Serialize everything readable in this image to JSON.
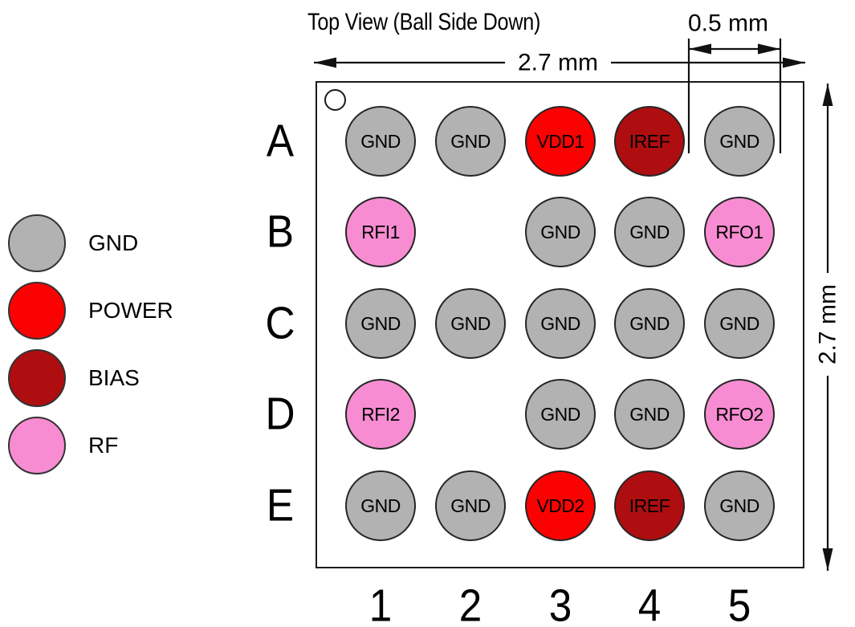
{
  "title": "Top View (Ball Side Down)",
  "dimensions": {
    "width_label": "2.7 mm",
    "height_label": "2.7 mm",
    "pitch_label": "0.5 mm"
  },
  "legend": [
    {
      "type": "GND",
      "label": "GND",
      "color": "#B2B2B2"
    },
    {
      "type": "POWER",
      "label": "POWER",
      "color": "#FA0202"
    },
    {
      "type": "BIAS",
      "label": "BIAS",
      "color": "#AE0E10"
    },
    {
      "type": "RF",
      "label": "RF",
      "color": "#F78CD2"
    }
  ],
  "package": {
    "rows": [
      "A",
      "B",
      "C",
      "D",
      "E"
    ],
    "columns": [
      "1",
      "2",
      "3",
      "4",
      "5"
    ]
  },
  "balls": [
    {
      "row": "A",
      "col": 1,
      "label": "GND",
      "type": "GND"
    },
    {
      "row": "A",
      "col": 2,
      "label": "GND",
      "type": "GND"
    },
    {
      "row": "A",
      "col": 3,
      "label": "VDD1",
      "type": "POWER"
    },
    {
      "row": "A",
      "col": 4,
      "label": "IREF",
      "type": "BIAS"
    },
    {
      "row": "A",
      "col": 5,
      "label": "GND",
      "type": "GND"
    },
    {
      "row": "B",
      "col": 1,
      "label": "RFI1",
      "type": "RF"
    },
    {
      "row": "B",
      "col": 3,
      "label": "GND",
      "type": "GND"
    },
    {
      "row": "B",
      "col": 4,
      "label": "GND",
      "type": "GND"
    },
    {
      "row": "B",
      "col": 5,
      "label": "RFO1",
      "type": "RF"
    },
    {
      "row": "C",
      "col": 1,
      "label": "GND",
      "type": "GND"
    },
    {
      "row": "C",
      "col": 2,
      "label": "GND",
      "type": "GND"
    },
    {
      "row": "C",
      "col": 3,
      "label": "GND",
      "type": "GND"
    },
    {
      "row": "C",
      "col": 4,
      "label": "GND",
      "type": "GND"
    },
    {
      "row": "C",
      "col": 5,
      "label": "GND",
      "type": "GND"
    },
    {
      "row": "D",
      "col": 1,
      "label": "RFI2",
      "type": "RF"
    },
    {
      "row": "D",
      "col": 3,
      "label": "GND",
      "type": "GND"
    },
    {
      "row": "D",
      "col": 4,
      "label": "GND",
      "type": "GND"
    },
    {
      "row": "D",
      "col": 5,
      "label": "RFO2",
      "type": "RF"
    },
    {
      "row": "E",
      "col": 1,
      "label": "GND",
      "type": "GND"
    },
    {
      "row": "E",
      "col": 2,
      "label": "GND",
      "type": "GND"
    },
    {
      "row": "E",
      "col": 3,
      "label": "VDD2",
      "type": "POWER"
    },
    {
      "row": "E",
      "col": 4,
      "label": "IREF",
      "type": "BIAS"
    },
    {
      "row": "E",
      "col": 5,
      "label": "GND",
      "type": "GND"
    }
  ]
}
